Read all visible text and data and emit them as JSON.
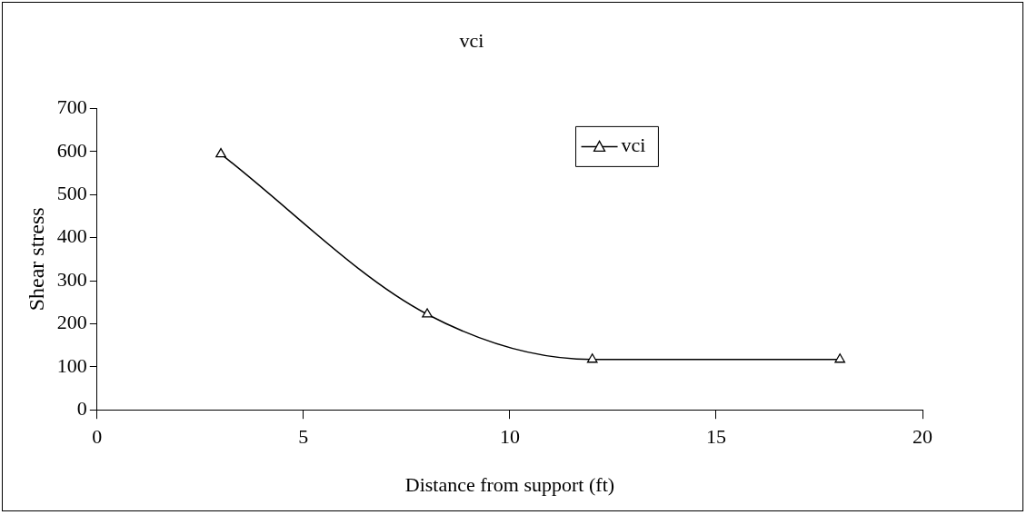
{
  "chart_data": {
    "type": "line",
    "title": "vci",
    "xlabel": "Distance from support (ft)",
    "ylabel": "Shear stress",
    "x": [
      3,
      8,
      12,
      18
    ],
    "series": [
      {
        "name": "vci",
        "color": "#000000",
        "values": [
          594,
          222,
          117,
          117
        ]
      }
    ],
    "xlim": [
      0,
      20
    ],
    "xticks": [
      0,
      5,
      10,
      15,
      20
    ],
    "ylim": [
      0,
      700
    ],
    "yticks": [
      0,
      100,
      200,
      300,
      400,
      500,
      600,
      700
    ],
    "grid": false,
    "legend": "top right",
    "marker": "triangle",
    "line_style": "solid"
  }
}
